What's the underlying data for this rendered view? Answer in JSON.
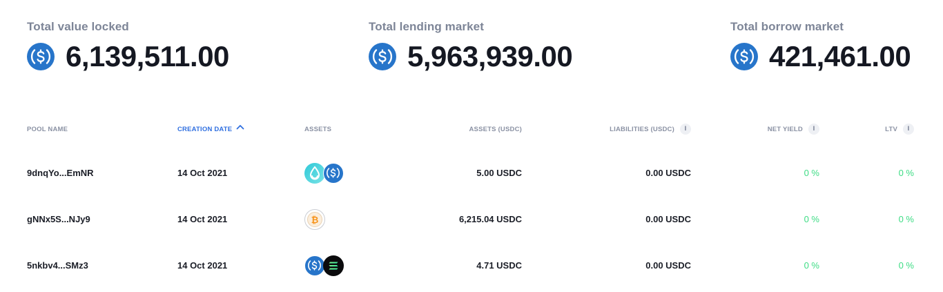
{
  "stats": [
    {
      "label": "Total value locked",
      "value": "6,139,511.00",
      "icon": "usdc-icon"
    },
    {
      "label": "Total lending market",
      "value": "5,963,939.00",
      "icon": "usdc-icon"
    },
    {
      "label": "Total borrow market",
      "value": "421,461.00",
      "icon": "usdc-icon"
    }
  ],
  "table": {
    "headers": {
      "pool_name": "POOL NAME",
      "creation_date": "CREATION DATE",
      "assets": "ASSETS",
      "assets_usdc": "ASSETS (USDC)",
      "liabilities_usdc": "LIABILITIES (USDC)",
      "net_yield": "NET YIELD",
      "ltv": "LTV"
    },
    "sort": {
      "column": "creation_date",
      "direction": "ascending"
    },
    "info_glyph": "i",
    "rows": [
      {
        "pool_name": "9dnqYo...EmNR",
        "creation_date": "14 Oct 2021",
        "assets": [
          "water-drop-token-icon",
          "usdc-icon"
        ],
        "assets_usdc": "5.00 USDC",
        "liabilities_usdc": "0.00 USDC",
        "net_yield": "0 %",
        "ltv": "0 %"
      },
      {
        "pool_name": "gNNx5S...NJy9",
        "creation_date": "14 Oct 2021",
        "assets": [
          "bitcoin-icon"
        ],
        "assets_usdc": "6,215.04 USDC",
        "liabilities_usdc": "0.00 USDC",
        "net_yield": "0 %",
        "ltv": "0 %"
      },
      {
        "pool_name": "5nkbv4...SMz3",
        "creation_date": "14 Oct 2021",
        "assets": [
          "usdc-icon",
          "solana-icon"
        ],
        "assets_usdc": "4.71 USDC",
        "liabilities_usdc": "0.00 USDC",
        "net_yield": "0 %",
        "ltv": "0 %"
      }
    ]
  },
  "colors": {
    "usdc_blue": "#2775ca",
    "accent_blue": "#2f6fe0",
    "positive_green": "#3ddc84",
    "muted_text": "#7d8597",
    "bitcoin_orange": "#f7931a"
  }
}
